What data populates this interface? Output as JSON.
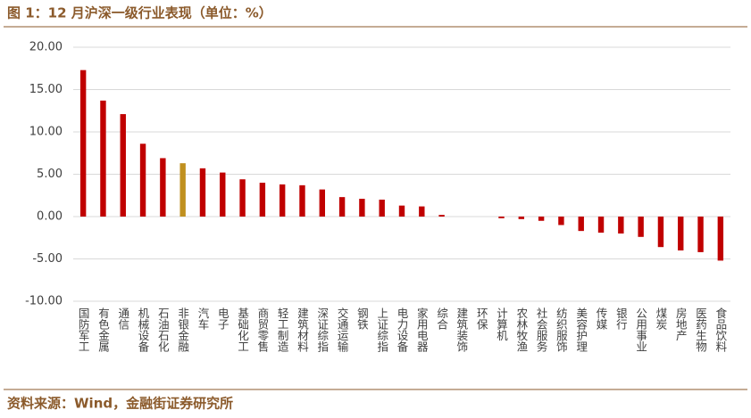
{
  "chart_data": {
    "type": "bar",
    "title": "图 1：12 月沪深一级行业表现（单位：%）",
    "source": "资料来源：Wind，金融街证券研究所",
    "categories": [
      "国防军工",
      "有色金属",
      "通信",
      "机械设备",
      "石油石化",
      "非银金融",
      "汽车",
      "电子",
      "基础化工",
      "商贸零售",
      "轻工制造",
      "建筑材料",
      "深证综指",
      "交通运输",
      "钢铁",
      "上证综指",
      "电力设备",
      "家用电器",
      "综合",
      "建筑装饰",
      "环保",
      "计算机",
      "农林牧渔",
      "社会服务",
      "纺织服饰",
      "美容护理",
      "传媒",
      "银行",
      "公用事业",
      "煤炭",
      "房地产",
      "医药生物",
      "食品饮料"
    ],
    "values": [
      17.3,
      13.7,
      12.1,
      8.6,
      6.9,
      6.3,
      5.7,
      5.2,
      4.4,
      4.0,
      3.8,
      3.7,
      3.2,
      2.3,
      2.1,
      2.0,
      1.3,
      1.2,
      0.2,
      0,
      0,
      -0.2,
      -0.3,
      -0.5,
      -1.0,
      -1.7,
      -1.9,
      -2.0,
      -2.4,
      -3.6,
      -4.0,
      -4.2,
      -5.2
    ],
    "colors": [
      "#c00000",
      "#c00000",
      "#c00000",
      "#c00000",
      "#c00000",
      "#c0901f",
      "#c00000",
      "#c00000",
      "#c00000",
      "#c00000",
      "#c00000",
      "#c00000",
      "#c00000",
      "#c00000",
      "#c00000",
      "#c00000",
      "#c00000",
      "#c00000",
      "#c00000",
      "#c00000",
      "#c00000",
      "#c00000",
      "#c00000",
      "#c00000",
      "#c00000",
      "#c00000",
      "#c00000",
      "#c00000",
      "#c00000",
      "#c00000",
      "#c00000",
      "#c00000",
      "#c00000"
    ],
    "ylim": [
      -10,
      20
    ],
    "yticks": [
      {
        "value": -10,
        "label": "-10.00"
      },
      {
        "value": -5,
        "label": "-5.00"
      },
      {
        "value": 0,
        "label": "0.00"
      },
      {
        "value": 5,
        "label": "5.00"
      },
      {
        "value": 10,
        "label": "10.00"
      },
      {
        "value": 15,
        "label": "15.00"
      },
      {
        "value": 20,
        "label": "20.00"
      }
    ],
    "grid": true
  }
}
